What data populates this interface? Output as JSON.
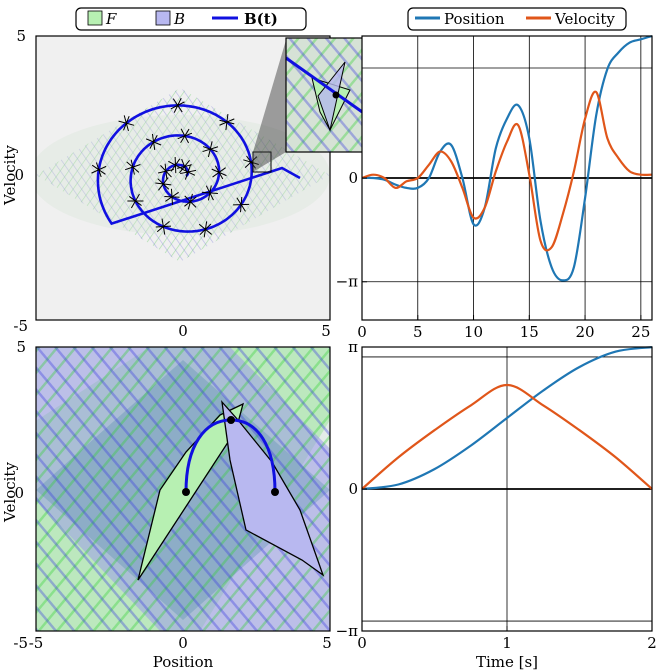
{
  "colors": {
    "forward": "#b7f0b2",
    "backward": "#b8b8f0",
    "trajectory": "#1010e0",
    "position": "#1f77b4",
    "velocity": "#e0561a",
    "panel_bg": "#f0f0f0"
  },
  "legends": {
    "left": [
      "F",
      "B",
      "B(t)"
    ],
    "right": [
      "Position",
      "Velocity"
    ]
  },
  "chart_data": [
    {
      "type": "scatter",
      "panel": "top-left",
      "ylabel": "Velocity",
      "x_ticks": [
        "0",
        "5"
      ],
      "y_ticks": [
        "5",
        "0",
        "-5"
      ],
      "xlim": [
        -5,
        5
      ],
      "ylim": [
        -5,
        5
      ],
      "legend": "top",
      "inset": "zoom of trajectory region near (2.8, 0.2)",
      "series": [
        {
          "name": "B(t)",
          "shape": "spiral",
          "start": [
            0,
            0
          ],
          "end": [
            3.5,
            0
          ]
        }
      ]
    },
    {
      "type": "line",
      "panel": "top-right",
      "x_ticks": [
        "0",
        "5",
        "10",
        "15",
        "20",
        "25"
      ],
      "y_ticks": [
        "0",
        "−π"
      ],
      "xlim": [
        0,
        26
      ],
      "ylim": [
        -4.3,
        4.3
      ],
      "legend": "top",
      "series": [
        {
          "name": "Position",
          "x": [
            0,
            1,
            2,
            3,
            4,
            5,
            6,
            7,
            8,
            9,
            10,
            11,
            12,
            13,
            14,
            15,
            16,
            17,
            18,
            19,
            20,
            21,
            22,
            23,
            24,
            25,
            26
          ],
          "values": [
            0,
            0,
            -0.05,
            -0.2,
            -0.3,
            -0.3,
            0,
            0.8,
            1,
            0,
            -1.4,
            -0.9,
            0.9,
            1.8,
            2.2,
            1.2,
            -1.3,
            -2.7,
            -3.1,
            -2.7,
            -0.6,
            1.9,
            3.3,
            3.8,
            4.1,
            4.2,
            4.3
          ]
        },
        {
          "name": "Velocity",
          "x": [
            0,
            1,
            2,
            3,
            4,
            5,
            6,
            7,
            8,
            9,
            10,
            11,
            12,
            13,
            14,
            15,
            16,
            17,
            18,
            19,
            20,
            21,
            22,
            23,
            24,
            25,
            26
          ],
          "values": [
            0,
            0.1,
            0,
            -0.3,
            -0.1,
            0,
            0.4,
            0.8,
            0.5,
            -0.3,
            -1.2,
            -0.9,
            0.2,
            1.1,
            1.6,
            0.1,
            -1.9,
            -2.1,
            -1.1,
            0.2,
            1.8,
            2.6,
            1.2,
            0.6,
            0.2,
            0.1,
            0.1
          ]
        }
      ]
    },
    {
      "type": "scatter",
      "panel": "bottom-left",
      "xlabel": "Position",
      "ylabel": "Velocity",
      "x_ticks": [
        "-5",
        "0",
        "5"
      ],
      "y_ticks": [
        "5",
        "0",
        "-5"
      ],
      "xlim": [
        -5,
        5
      ],
      "ylim": [
        -5,
        5
      ],
      "series": [
        {
          "name": "B(t)",
          "shape": "arc",
          "start": [
            0,
            0
          ],
          "mid": [
            1.5,
            2.6
          ],
          "end": [
            3,
            0
          ]
        }
      ]
    },
    {
      "type": "line",
      "panel": "bottom-right",
      "xlabel": "Time [s]",
      "x_ticks": [
        "0",
        "1",
        "2"
      ],
      "y_ticks": [
        "π",
        "0",
        "−π"
      ],
      "xlim": [
        0,
        2
      ],
      "ylim": [
        -3.14159,
        3.14159
      ],
      "series": [
        {
          "name": "Position",
          "x": [
            0,
            0.25,
            0.5,
            0.75,
            1,
            1.25,
            1.5,
            1.75,
            2
          ],
          "values": [
            0,
            0.1,
            0.44,
            0.96,
            1.57,
            2.18,
            2.7,
            3.04,
            3.14
          ]
        },
        {
          "name": "Velocity",
          "x": [
            0,
            0.25,
            0.5,
            0.75,
            1,
            1.25,
            1.5,
            1.75,
            2
          ],
          "values": [
            0,
            0.7,
            1.3,
            1.85,
            2.3,
            1.85,
            1.3,
            0.7,
            0
          ]
        }
      ]
    }
  ]
}
